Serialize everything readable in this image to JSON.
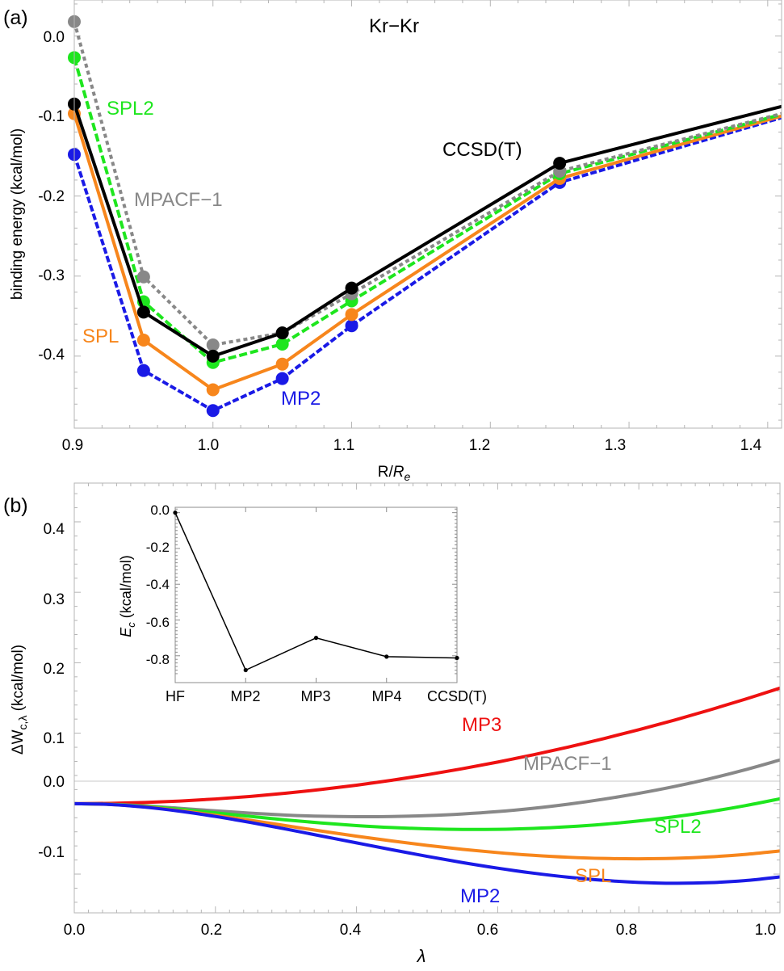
{
  "chart_data": [
    {
      "type": "line",
      "panel_label": "(a)",
      "title": "Kr−Kr",
      "xlabel": "R/",
      "xlabel_sym": "R",
      "xlabel_sub": "e",
      "ylabel": "binding energy (kcal/mol)",
      "xlim": [
        0.9,
        1.41
      ],
      "ylim": [
        -0.49,
        0.045
      ],
      "x_ticks": [
        0.9,
        1.0,
        1.1,
        1.2,
        1.3,
        1.4
      ],
      "x_tick_labels": [
        "0.9",
        "1.0",
        "1.1",
        "1.2",
        "1.3",
        "1.4"
      ],
      "y_ticks": [
        0.0,
        -0.1,
        -0.2,
        -0.3,
        -0.4
      ],
      "y_tick_labels": [
        "0.0",
        "-0.1",
        "-0.2",
        "-0.3",
        "-0.4"
      ],
      "x": [
        0.9,
        0.95,
        1.0,
        1.05,
        1.1,
        1.25
      ],
      "series": [
        {
          "name": "MP2",
          "color": "#1a1ae6",
          "dash": "8,3",
          "values": [
            -0.148,
            -0.418,
            -0.468,
            -0.428,
            -0.362,
            -0.183
          ],
          "tail": -0.102
        },
        {
          "name": "SPL",
          "color": "#f7861c",
          "dash": "",
          "values": [
            -0.097,
            -0.38,
            -0.442,
            -0.41,
            -0.348,
            -0.178
          ],
          "tail": -0.1
        },
        {
          "name": "SPL2",
          "color": "#1ee61e",
          "dash": "10,4",
          "values": [
            -0.027,
            -0.332,
            -0.408,
            -0.385,
            -0.331,
            -0.172
          ],
          "tail": -0.098
        },
        {
          "name": "MPACF-1",
          "color": "#888888",
          "dash": "5,4",
          "values": [
            0.018,
            -0.301,
            -0.386,
            -0.371,
            -0.322,
            -0.169
          ],
          "tail": -0.097
        },
        {
          "name": "CCSD(T)",
          "color": "#000000",
          "dash": "",
          "values": [
            -0.085,
            -0.345,
            -0.4,
            -0.371,
            -0.315,
            -0.159
          ],
          "tail": -0.088
        }
      ],
      "annotations": [
        {
          "text": "SPL2",
          "color": "#1ee61e"
        },
        {
          "text": "MPACF−1",
          "color": "#888888"
        },
        {
          "text": "SPL",
          "color": "#f7861c"
        },
        {
          "text": "MP2",
          "color": "#1a1ae6"
        },
        {
          "text": "CCSD(T)",
          "color": "#000000"
        }
      ]
    },
    {
      "type": "line",
      "panel_label": "(b)",
      "xlabel": "λ",
      "ylabel_prefix": "ΔW",
      "ylabel_sub": "c,λ",
      "ylabel_suffix": " (kcal/mol)",
      "xlim": [
        0,
        1
      ],
      "ylim": [
        -0.155,
        0.455
      ],
      "x_ticks": [
        0,
        0.2,
        0.4,
        0.6,
        0.8,
        1.0
      ],
      "x_tick_labels": [
        "0.0",
        "0.2",
        "0.4",
        "0.6",
        "0.8",
        "1.0"
      ],
      "y_ticks": [
        0.4,
        0.3,
        0.2,
        0.1,
        0.0,
        -0.1
      ],
      "y_tick_labels": [
        "0.4",
        "0.3",
        "0.2",
        "0.1",
        "0.0",
        "-0.1"
      ],
      "lambda": [
        0,
        0.05,
        0.1,
        0.15,
        0.2,
        0.25,
        0.3,
        0.35,
        0.4,
        0.45,
        0.5,
        0.55,
        0.6,
        0.65,
        0.7,
        0.75,
        0.8,
        0.85,
        0.9,
        0.95,
        1.0
      ],
      "series": [
        {
          "name": "MP3",
          "color": "#ee1111",
          "values": [
            0,
            0.0004,
            0.0016,
            0.0037,
            0.0066,
            0.0103,
            0.0148,
            0.0201,
            0.0262,
            0.0332,
            0.041,
            0.0496,
            0.059,
            0.0692,
            0.0803,
            0.0922,
            0.1049,
            0.1184,
            0.1328,
            0.148,
            0.164
          ]
        },
        {
          "name": "MPACF-1",
          "color": "#888888",
          "values": [
            0,
            -0.0008,
            -0.0032,
            -0.0066,
            -0.0103,
            -0.0136,
            -0.0162,
            -0.0179,
            -0.0186,
            -0.0183,
            -0.017,
            -0.0147,
            -0.0113,
            -0.0067,
            -0.0008,
            0.0063,
            0.0146,
            0.0242,
            0.0353,
            0.0479,
            0.062
          ]
        },
        {
          "name": "SPL2",
          "color": "#1ee61e",
          "values": [
            0,
            -0.001,
            -0.0039,
            -0.0081,
            -0.0131,
            -0.0182,
            -0.0231,
            -0.0275,
            -0.0311,
            -0.0339,
            -0.0357,
            -0.0366,
            -0.0364,
            -0.0352,
            -0.0328,
            -0.0293,
            -0.0246,
            -0.0187,
            -0.0115,
            -0.003,
            0.0069
          ]
        },
        {
          "name": "SPL",
          "color": "#f7861c",
          "values": [
            0,
            -0.0012,
            -0.0047,
            -0.01,
            -0.0165,
            -0.0237,
            -0.0313,
            -0.0389,
            -0.0462,
            -0.053,
            -0.0593,
            -0.0648,
            -0.0695,
            -0.0733,
            -0.0761,
            -0.0778,
            -0.0783,
            -0.0776,
            -0.0756,
            -0.0721,
            -0.0671
          ]
        },
        {
          "name": "MP2",
          "color": "#1a1ae6",
          "values": [
            0,
            -0.0012,
            -0.005,
            -0.0108,
            -0.0182,
            -0.0268,
            -0.0361,
            -0.0459,
            -0.0557,
            -0.0654,
            -0.0748,
            -0.0836,
            -0.0916,
            -0.0986,
            -0.1044,
            -0.1089,
            -0.1118,
            -0.113,
            -0.1122,
            -0.1093,
            -0.104
          ]
        }
      ],
      "annotations": [
        {
          "text": "MP3",
          "color": "#ee1111"
        },
        {
          "text": "MPACF−1",
          "color": "#888888"
        },
        {
          "text": "SPL2",
          "color": "#1ee61e"
        },
        {
          "text": "SPL",
          "color": "#f7861c"
        },
        {
          "text": "MP2",
          "color": "#1a1ae6"
        }
      ],
      "inset": {
        "type": "line",
        "ylabel_sym": "E",
        "ylabel_sub": "c",
        "ylabel_suffix": " (kcal/mol)",
        "categories": [
          "HF",
          "MP2",
          "MP3",
          "MP4",
          "CCSD(T)"
        ],
        "values": [
          0.0,
          -0.88,
          -0.7,
          -0.805,
          -0.812
        ],
        "ylim": [
          -0.95,
          0.03
        ],
        "y_ticks": [
          0.0,
          -0.2,
          -0.4,
          -0.6,
          -0.8
        ],
        "y_tick_labels": [
          "0.0",
          "-0.2",
          "-0.4",
          "-0.6",
          "-0.8"
        ]
      }
    }
  ]
}
